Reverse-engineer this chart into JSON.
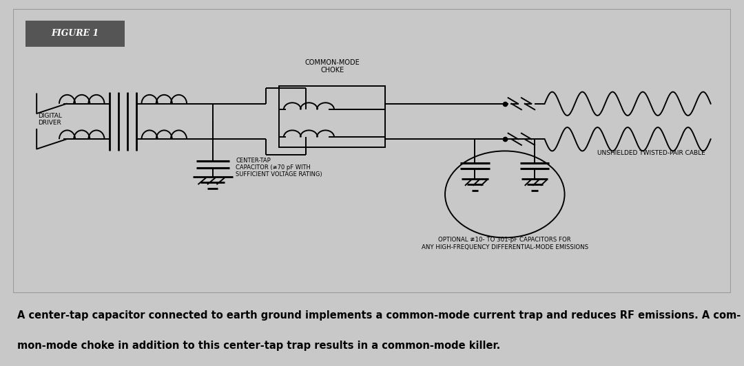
{
  "fig_width": 10.8,
  "fig_height": 5.32,
  "dpi": 100,
  "outer_bg": "#c8c8c8",
  "diagram_bg": "#f0f0f0",
  "diagram_border": "#888888",
  "figure_label": "FIGURE 1",
  "figure_label_bg": "#555555",
  "figure_label_color": "#ffffff",
  "caption_line1": "A center-tap capacitor connected to earth ground implements a common-mode current trap and reduces RF emissions. A com-",
  "caption_line2": "mon-mode choke in addition to this center-tap trap results in a common-mode killer.",
  "caption_fontsize": 10.5,
  "line_color": "#000000",
  "text_color": "#000000",
  "lw": 1.4,
  "label_digital_driver": "DIGITAL\nDRIVER",
  "label_common_mode_choke": "COMMON-MODE\nCHOKE",
  "label_center_tap": "CENTER-TAP\nCAPACITOR (≇70 pF WITH\nSUFFICIENT VOLTAGE RATING)",
  "label_unshielded": "UNSHIELDED TWISTED-PAIR CABLE",
  "label_optional": "OPTIONAL ≇10- TO 301-pF CAPACITORS FOR\nANY HIGH-FREQUENCY DIFFERENTIAL-MODE EMISSIONS"
}
